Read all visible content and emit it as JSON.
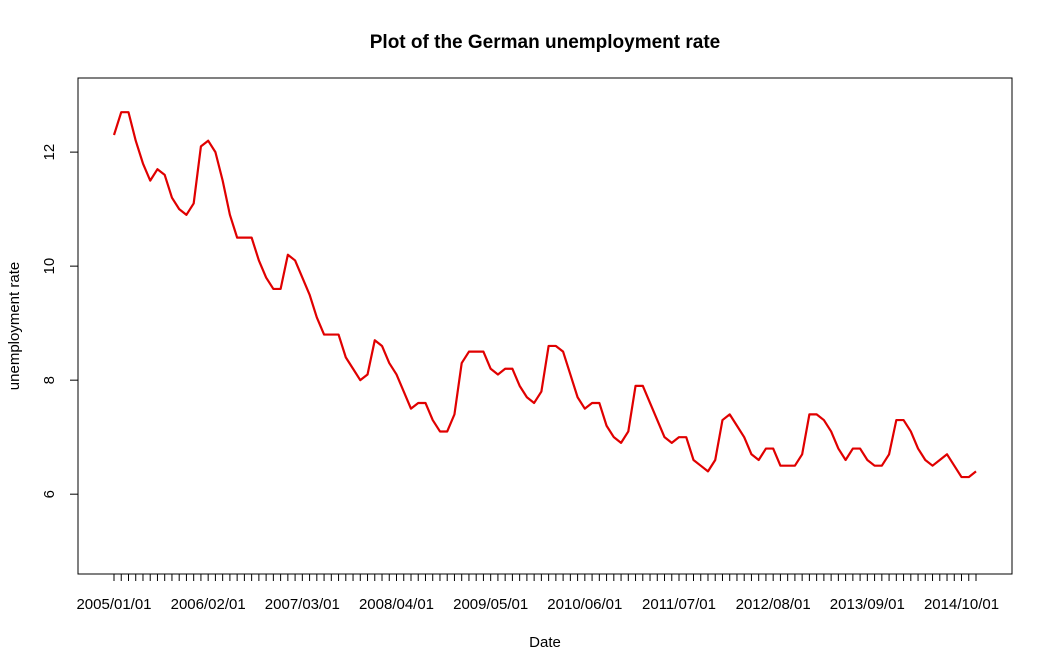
{
  "chart_data": {
    "type": "line",
    "title": "Plot of the German unemployment rate",
    "xlabel": "Date",
    "ylabel": "unemployment rate",
    "x_start": "2005/01/01",
    "x_frequency": "monthly",
    "x_tick_labels": [
      "2005/01/01",
      "2006/02/01",
      "2007/03/01",
      "2008/04/01",
      "2009/05/01",
      "2010/06/01",
      "2011/07/01",
      "2012/08/01",
      "2013/09/01",
      "2014/10/01"
    ],
    "y_ticks": [
      6,
      8,
      10,
      12
    ],
    "ylim": [
      4.6,
      13.3
    ],
    "grid": false,
    "series": [
      {
        "color": "#e00000",
        "values": [
          12.3,
          12.7,
          12.7,
          12.2,
          11.8,
          11.5,
          11.7,
          11.6,
          11.2,
          11.0,
          10.9,
          11.1,
          12.1,
          12.2,
          12.0,
          11.5,
          10.9,
          10.5,
          10.5,
          10.5,
          10.1,
          9.8,
          9.6,
          9.6,
          10.2,
          10.1,
          9.8,
          9.5,
          9.1,
          8.8,
          8.8,
          8.8,
          8.4,
          8.2,
          8.0,
          8.1,
          8.7,
          8.6,
          8.3,
          8.1,
          7.8,
          7.5,
          7.6,
          7.6,
          7.3,
          7.1,
          7.1,
          7.4,
          8.3,
          8.5,
          8.5,
          8.5,
          8.2,
          8.1,
          8.2,
          8.2,
          7.9,
          7.7,
          7.6,
          7.8,
          8.6,
          8.6,
          8.5,
          8.1,
          7.7,
          7.5,
          7.6,
          7.6,
          7.2,
          7.0,
          6.9,
          7.1,
          7.9,
          7.9,
          7.6,
          7.3,
          7.0,
          6.9,
          7.0,
          7.0,
          6.6,
          6.5,
          6.4,
          6.6,
          7.3,
          7.4,
          7.2,
          7.0,
          6.7,
          6.6,
          6.8,
          6.8,
          6.5,
          6.5,
          6.5,
          6.7,
          7.4,
          7.4,
          7.3,
          7.1,
          6.8,
          6.6,
          6.8,
          6.8,
          6.6,
          6.5,
          6.5,
          6.7,
          7.3,
          7.3,
          7.1,
          6.8,
          6.6,
          6.5,
          6.6,
          6.7,
          6.5,
          6.3,
          6.3,
          6.4
        ]
      }
    ]
  }
}
